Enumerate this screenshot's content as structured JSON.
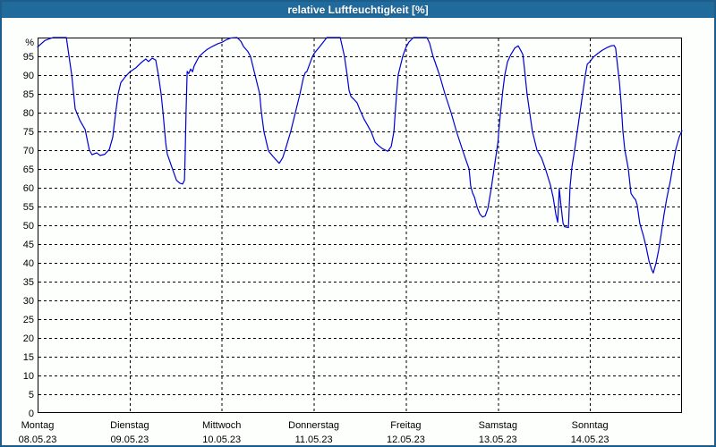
{
  "window": {
    "title": "relative Luftfeuchtigkeit [%]"
  },
  "colors": {
    "titlebar_bg": "#216a9c",
    "window_border": "#1b5e8c",
    "plot_background": "#fdfffd",
    "plot_frame": "#000000",
    "grid": "#000000",
    "label_text": "#000000",
    "series_line": "#0000d0"
  },
  "chart_data": {
    "type": "line",
    "title": "relative Luftfeuchtigkeit [%]",
    "ylabel": "%",
    "y_axis_top_label": "%",
    "ylim": [
      0,
      100
    ],
    "y_ticks": [
      0,
      5,
      10,
      15,
      20,
      25,
      30,
      35,
      40,
      45,
      50,
      55,
      60,
      65,
      70,
      75,
      80,
      85,
      90,
      95
    ],
    "grid": "dashed",
    "legend_position": "none",
    "x_range_hours": [
      0,
      168
    ],
    "x_days": [
      {
        "name": "Montag",
        "date": "08.05.23"
      },
      {
        "name": "Dienstag",
        "date": "09.05.23"
      },
      {
        "name": "Mittwoch",
        "date": "10.05.23"
      },
      {
        "name": "Donnerstag",
        "date": "11.05.23"
      },
      {
        "name": "Freitag",
        "date": "12.05.23"
      },
      {
        "name": "Samstag",
        "date": "13.05.23"
      },
      {
        "name": "Sonntag",
        "date": "14.05.23"
      }
    ],
    "series": [
      {
        "name": "relative Luftfeuchtigkeit",
        "unit": "%",
        "points": [
          [
            0,
            97.5
          ],
          [
            1.9,
            99.2
          ],
          [
            4,
            100
          ],
          [
            7.5,
            100
          ],
          [
            8.2,
            95
          ],
          [
            8.9,
            90
          ],
          [
            9.8,
            81
          ],
          [
            11,
            78
          ],
          [
            12.4,
            75.5
          ],
          [
            13.5,
            70
          ],
          [
            14.2,
            68.8
          ],
          [
            15.4,
            69.3
          ],
          [
            16.3,
            68.6
          ],
          [
            17.5,
            68.9
          ],
          [
            18.7,
            70.2
          ],
          [
            19.6,
            73.5
          ],
          [
            20.3,
            79.5
          ],
          [
            21,
            85
          ],
          [
            21.7,
            88
          ],
          [
            22.9,
            89.6
          ],
          [
            24,
            90.8
          ],
          [
            25.7,
            92
          ],
          [
            27.1,
            93.4
          ],
          [
            28.2,
            94.3
          ],
          [
            28.9,
            93.6
          ],
          [
            29.9,
            94.5
          ],
          [
            30.8,
            94
          ],
          [
            31.5,
            90
          ],
          [
            32.2,
            85
          ],
          [
            32.7,
            80
          ],
          [
            33.4,
            72
          ],
          [
            33.8,
            69
          ],
          [
            35,
            65.5
          ],
          [
            36.2,
            62
          ],
          [
            37.1,
            61.2
          ],
          [
            37.8,
            61
          ],
          [
            38.3,
            62
          ],
          [
            38.5,
            70
          ],
          [
            38.7,
            80
          ],
          [
            39,
            91
          ],
          [
            39.4,
            90.4
          ],
          [
            39.9,
            91.6
          ],
          [
            40.4,
            90.9
          ],
          [
            40.8,
            92.4
          ],
          [
            42,
            94.8
          ],
          [
            43.2,
            96
          ],
          [
            44.3,
            96.9
          ],
          [
            45.7,
            97.7
          ],
          [
            47.1,
            98.4
          ],
          [
            48,
            98.7
          ],
          [
            49.2,
            99.4
          ],
          [
            50.4,
            99.9
          ],
          [
            52,
            100
          ],
          [
            53,
            99
          ],
          [
            53.7,
            97.6
          ],
          [
            54.8,
            96.3
          ],
          [
            55.5,
            95
          ],
          [
            56.7,
            90
          ],
          [
            57.9,
            85
          ],
          [
            58.3,
            80.5
          ],
          [
            59,
            75
          ],
          [
            60.2,
            69.8
          ],
          [
            61.4,
            68.3
          ],
          [
            62.1,
            67.5
          ],
          [
            63,
            66.5
          ],
          [
            63.9,
            68
          ],
          [
            64.6,
            70.2
          ],
          [
            66,
            75
          ],
          [
            67.2,
            80
          ],
          [
            68.4,
            85
          ],
          [
            69.3,
            89.3
          ],
          [
            69.8,
            90.7
          ],
          [
            70.2,
            90.9
          ],
          [
            71.6,
            94.8
          ],
          [
            72,
            95.6
          ],
          [
            72.6,
            96.4
          ],
          [
            73.5,
            97.5
          ],
          [
            75.4,
            100
          ],
          [
            78.9,
            100
          ],
          [
            80,
            95
          ],
          [
            80.7,
            90
          ],
          [
            81.2,
            86
          ],
          [
            81.7,
            84.3
          ],
          [
            82.6,
            83.4
          ],
          [
            83.3,
            82.6
          ],
          [
            84,
            80.8
          ],
          [
            85.2,
            78.1
          ],
          [
            86.1,
            76.5
          ],
          [
            87,
            74.8
          ],
          [
            88,
            72.1
          ],
          [
            88.9,
            71.2
          ],
          [
            89.9,
            70.4
          ],
          [
            91.3,
            69.7
          ],
          [
            92.2,
            71
          ],
          [
            92.9,
            75
          ],
          [
            93.1,
            78
          ],
          [
            93.6,
            85
          ],
          [
            94,
            90
          ],
          [
            95.2,
            95
          ],
          [
            96,
            97.3
          ],
          [
            96.8,
            98.8
          ],
          [
            98,
            100
          ],
          [
            101.5,
            100
          ],
          [
            102.2,
            98.5
          ],
          [
            103.1,
            95
          ],
          [
            104.8,
            90
          ],
          [
            106.2,
            85
          ],
          [
            107.8,
            80
          ],
          [
            109.2,
            75
          ],
          [
            110.8,
            70
          ],
          [
            111.8,
            67
          ],
          [
            112.5,
            65
          ],
          [
            112.9,
            60.5
          ],
          [
            113.4,
            58.6
          ],
          [
            113.9,
            57.5
          ],
          [
            114.6,
            54.8
          ],
          [
            115.3,
            53
          ],
          [
            116,
            52.2
          ],
          [
            116.7,
            52.5
          ],
          [
            117.4,
            54.5
          ],
          [
            118.3,
            60
          ],
          [
            119,
            65
          ],
          [
            120,
            72
          ],
          [
            120.4,
            77
          ],
          [
            120.9,
            82
          ],
          [
            121.3,
            86
          ],
          [
            121.8,
            90
          ],
          [
            122.5,
            93.5
          ],
          [
            123.4,
            95.5
          ],
          [
            124.4,
            97.2
          ],
          [
            125.3,
            97.8
          ],
          [
            126,
            96.5
          ],
          [
            126.5,
            95.5
          ],
          [
            126.9,
            92
          ],
          [
            127.6,
            85
          ],
          [
            128.3,
            80
          ],
          [
            129,
            75
          ],
          [
            130.2,
            70
          ],
          [
            131.4,
            67.9
          ],
          [
            132.5,
            64.7
          ],
          [
            133.7,
            60.7
          ],
          [
            134.4,
            57.5
          ],
          [
            135.1,
            53
          ],
          [
            135.6,
            50.8
          ],
          [
            135.8,
            55
          ],
          [
            136,
            59.8
          ],
          [
            136.5,
            54.8
          ],
          [
            137,
            50.5
          ],
          [
            137.4,
            49.6
          ],
          [
            138.4,
            49.4
          ],
          [
            138.8,
            60
          ],
          [
            139.3,
            65.5
          ],
          [
            140,
            70
          ],
          [
            140.7,
            75
          ],
          [
            141.4,
            80
          ],
          [
            142.1,
            85
          ],
          [
            142.8,
            90
          ],
          [
            143.3,
            92.9
          ],
          [
            144,
            93.6
          ],
          [
            144.9,
            94.8
          ],
          [
            146.1,
            95.8
          ],
          [
            147.2,
            96.6
          ],
          [
            148.4,
            97.3
          ],
          [
            149.6,
            97.8
          ],
          [
            150.3,
            97.9
          ],
          [
            150.7,
            97.2
          ],
          [
            151.2,
            92.5
          ],
          [
            151.7,
            88
          ],
          [
            152.1,
            83
          ],
          [
            152.6,
            75
          ],
          [
            153.1,
            70
          ],
          [
            153.3,
            69
          ],
          [
            154,
            65.1
          ],
          [
            154.7,
            58.5
          ],
          [
            155.4,
            57.4
          ],
          [
            155.9,
            56.8
          ],
          [
            156.3,
            55.5
          ],
          [
            157,
            50.5
          ],
          [
            158,
            47
          ],
          [
            158.7,
            44
          ],
          [
            159.4,
            40.5
          ],
          [
            160.1,
            38.2
          ],
          [
            160.5,
            37.3
          ],
          [
            161.2,
            39.8
          ],
          [
            161.9,
            43.3
          ],
          [
            162.6,
            47.8
          ],
          [
            163.3,
            52.8
          ],
          [
            164,
            57
          ],
          [
            165,
            62
          ],
          [
            165.7,
            66.3
          ],
          [
            166.4,
            70.3
          ],
          [
            167.3,
            73.6
          ],
          [
            168,
            75.2
          ]
        ]
      }
    ]
  }
}
